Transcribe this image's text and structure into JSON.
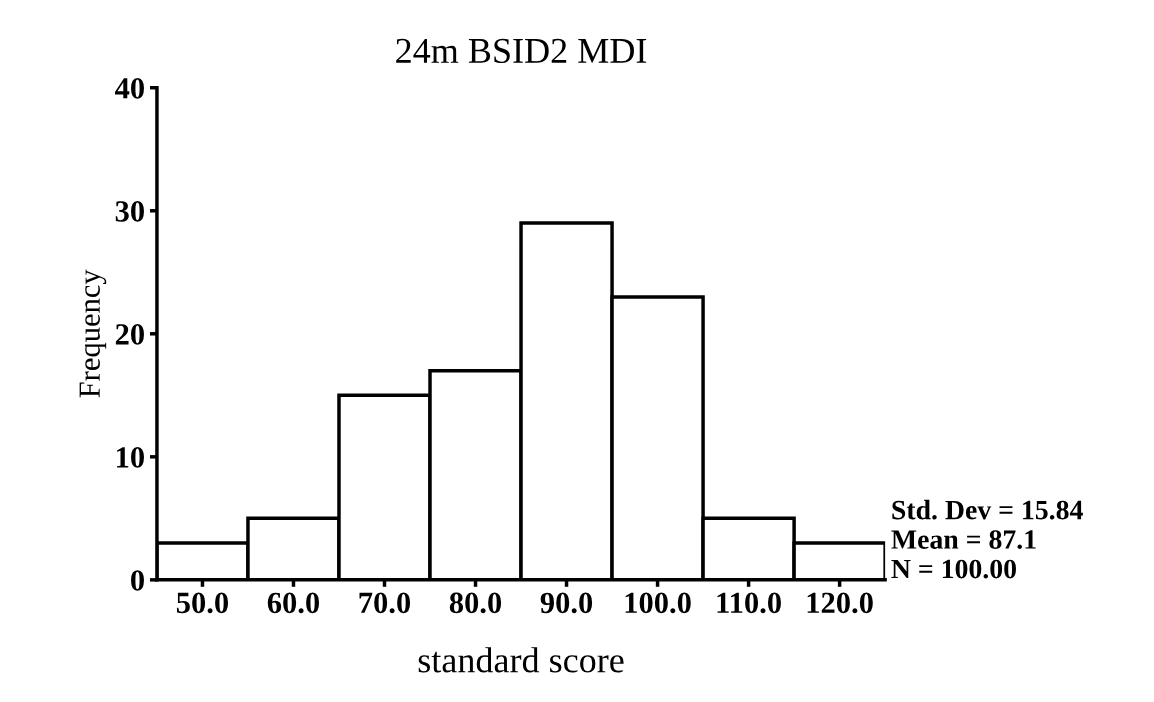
{
  "chart_data": {
    "type": "histogram",
    "title": "24m BSID2 MDI",
    "xlabel": "standard score",
    "ylabel": "Frequency",
    "bins": [
      45,
      55,
      65,
      75,
      85,
      95,
      105,
      115,
      125
    ],
    "values": [
      3,
      5,
      15,
      17,
      29,
      23,
      5,
      3
    ],
    "color": "#ffffff",
    "xlim": [
      45,
      125
    ],
    "xticks": [
      {
        "value": 50,
        "label": "50.0"
      },
      {
        "value": 60,
        "label": "60.0"
      },
      {
        "value": 70,
        "label": "70.0"
      },
      {
        "value": 80,
        "label": "80.0"
      },
      {
        "value": 90,
        "label": "90.0"
      },
      {
        "value": 100,
        "label": "100.0"
      },
      {
        "value": 110,
        "label": "110.0"
      },
      {
        "value": 120,
        "label": "120.0"
      }
    ],
    "ylim": [
      0,
      40
    ],
    "yticks": [
      0,
      10,
      20,
      30,
      40
    ],
    "grid": false,
    "annotations": [
      "Std. Dev = 15.84",
      "Mean = 87.1",
      "N = 100.00"
    ]
  }
}
